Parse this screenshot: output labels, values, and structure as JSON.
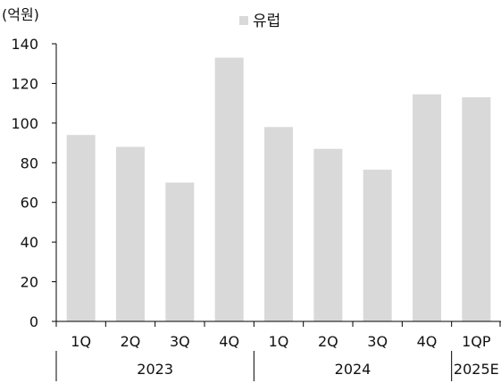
{
  "chart_data": {
    "type": "bar",
    "unit_label": "(억원)",
    "series": [
      {
        "name": "유럽",
        "color": "#d9d9d9",
        "values": [
          94,
          88,
          70,
          133,
          98,
          87,
          76.5,
          114.5,
          113
        ]
      }
    ],
    "categories": [
      "1Q",
      "2Q",
      "3Q",
      "4Q",
      "1Q",
      "2Q",
      "3Q",
      "4Q",
      "1QP"
    ],
    "groups": [
      {
        "label": "2023",
        "count": 4
      },
      {
        "label": "2024",
        "count": 4
      },
      {
        "label": "2025E",
        "count": 1
      }
    ],
    "ylim": [
      0,
      140
    ],
    "yticks": [
      0,
      20,
      40,
      60,
      80,
      100,
      120,
      140
    ],
    "grid": false,
    "legend": "top-center"
  }
}
